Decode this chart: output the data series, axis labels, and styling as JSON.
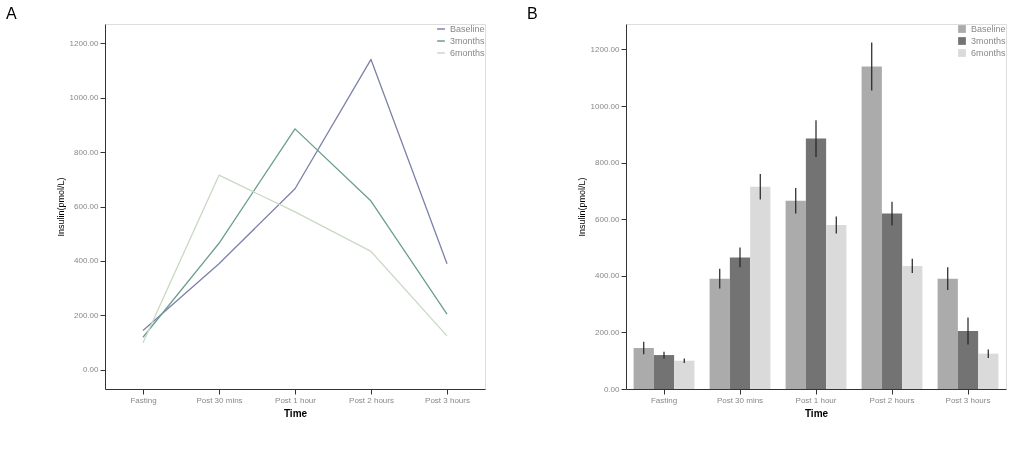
{
  "chart_data": [
    {
      "type": "line",
      "title": "A",
      "xlabel": "Time",
      "ylabel": "Insulin(pmol/L)",
      "categories": [
        "Fasting",
        "Post 30 mins",
        "Post 1 hour",
        "Post 2 hours",
        "Post 3 hours"
      ],
      "series": [
        {
          "name": "Baseline",
          "color": "#7c80a8",
          "values": [
            145,
            390,
            665,
            1140,
            390
          ]
        },
        {
          "name": "3months",
          "color": "#6a9e8a",
          "values": [
            120,
            465,
            885,
            620,
            205
          ]
        },
        {
          "name": "6months",
          "color": "#c9d9c3",
          "values": [
            100,
            715,
            580,
            435,
            125
          ]
        }
      ],
      "ylim": [
        -70,
        1270
      ],
      "yticks": [
        {
          "value": 0,
          "label": "0.00"
        },
        {
          "value": 200,
          "label": "200.00"
        },
        {
          "value": 400,
          "label": "400.00"
        },
        {
          "value": 600,
          "label": "600.00"
        },
        {
          "value": 800,
          "label": "800.00"
        },
        {
          "value": 1000,
          "label": "1000.00"
        },
        {
          "value": 1200,
          "label": "1200.00"
        }
      ],
      "legend": "top right",
      "grid": false
    },
    {
      "type": "bar",
      "title": "B",
      "xlabel": "Time",
      "ylabel": "Insulin(pmol/L)",
      "categories": [
        "Fasting",
        "Post 30 mins",
        "Post 1 hour",
        "Post 2 hours",
        "Post 3 hours"
      ],
      "series": [
        {
          "name": "Baseline",
          "color": "#ababab",
          "values": [
            145,
            390,
            665,
            1140,
            390
          ],
          "errors": [
            22,
            35,
            45,
            85,
            40
          ]
        },
        {
          "name": "3months",
          "color": "#737373",
          "values": [
            120,
            465,
            885,
            620,
            205
          ],
          "errors": [
            12,
            35,
            65,
            42,
            48
          ]
        },
        {
          "name": "6months",
          "color": "#dadada",
          "values": [
            100,
            715,
            580,
            435,
            125
          ],
          "errors": [
            8,
            45,
            30,
            25,
            15
          ]
        }
      ],
      "ylim": [
        0,
        1290
      ],
      "yticks": [
        {
          "value": 0,
          "label": "0.00"
        },
        {
          "value": 200,
          "label": "200.00"
        },
        {
          "value": 400,
          "label": "400.00"
        },
        {
          "value": 600,
          "label": "600.00"
        },
        {
          "value": 800,
          "label": "800.00"
        },
        {
          "value": 1000,
          "label": "1000.00"
        },
        {
          "value": 1200,
          "label": "1200.00"
        }
      ],
      "legend": "top right",
      "grid": false
    }
  ]
}
